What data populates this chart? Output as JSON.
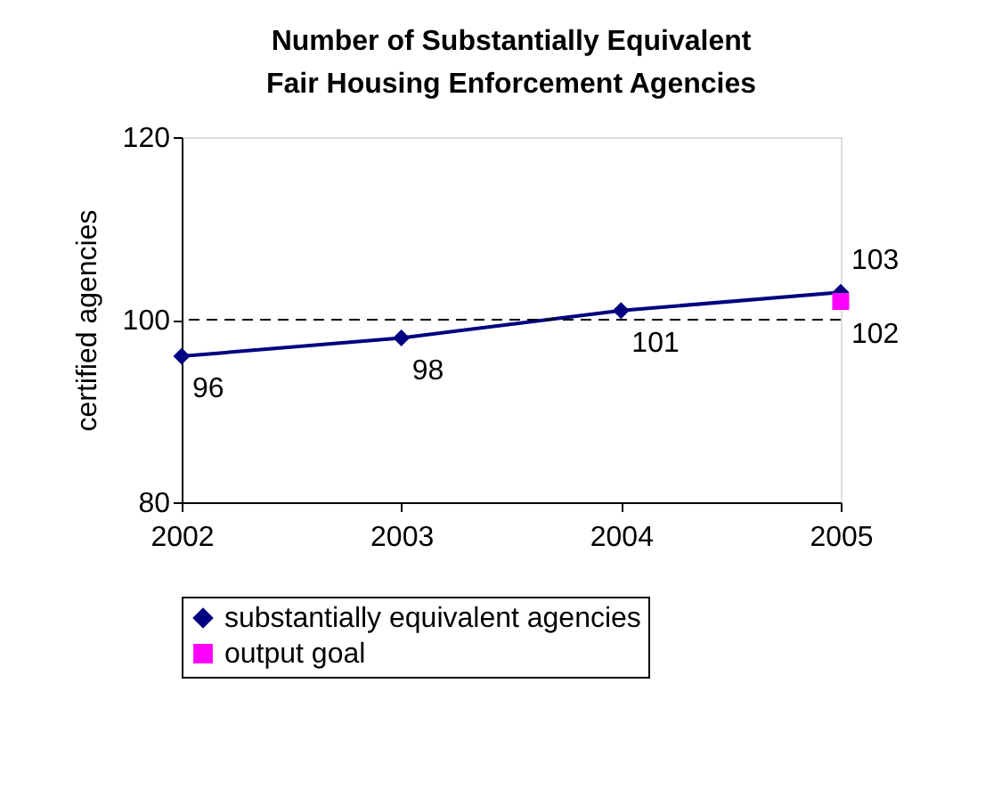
{
  "chart_data": {
    "type": "line",
    "title": "Number of Substantially Equivalent Fair Housing Enforcement Agencies",
    "ylabel": "certified agencies",
    "categories": [
      "2002",
      "2003",
      "2004",
      "2005"
    ],
    "series": [
      {
        "name": "substantially equivalent agencies",
        "color": "#000080",
        "values": [
          96,
          98,
          101,
          103
        ],
        "marker": "diamond"
      },
      {
        "name": "output goal",
        "color": "#ff00ff",
        "values": [
          null,
          null,
          null,
          102
        ],
        "marker": "square"
      }
    ],
    "ylim": [
      80,
      120
    ],
    "yticks": [
      80,
      100,
      120
    ],
    "grid": false,
    "legend": "bottom",
    "data_labels": true,
    "ref_lines": [
      {
        "axis": "y",
        "value": 100,
        "line_style": "dashed",
        "color": "#000000"
      }
    ]
  }
}
